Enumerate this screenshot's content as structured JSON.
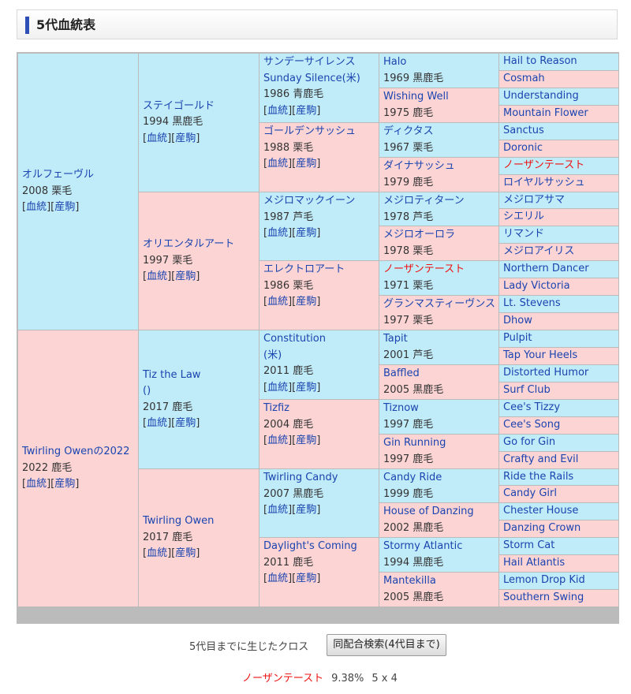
{
  "header": {
    "title": "5代血統表"
  },
  "link_pedigree": "血統",
  "link_offspring": "産駒",
  "pedigree": {
    "sire": {
      "name": "オルフェーヴル",
      "info": "2008 栗毛",
      "sire": {
        "name": "ステイゴールド",
        "info": "1994 黒鹿毛",
        "sire": {
          "name": "サンデーサイレンス",
          "name2": "Sunday Silence(米)",
          "info": "1986 青鹿毛",
          "sire": {
            "name": "Halo",
            "info": "1969 黒鹿毛",
            "sire": "Hail to Reason",
            "dam": "Cosmah"
          },
          "dam": {
            "name": "Wishing Well",
            "info": "1975 鹿毛",
            "sire": "Understanding",
            "dam": "Mountain Flower"
          }
        },
        "dam": {
          "name": "ゴールデンサッシュ",
          "info": "1988 栗毛",
          "sire": {
            "name": "ディクタス",
            "info": "1967 栗毛",
            "sire": "Sanctus",
            "dam": "Doronic"
          },
          "dam": {
            "name": "ダイナサッシュ",
            "info": "1979 鹿毛",
            "sire": "ノーザンテースト",
            "dam": "ロイヤルサッシュ"
          }
        }
      },
      "dam": {
        "name": "オリエンタルアート",
        "info": "1997 栗毛",
        "sire": {
          "name": "メジロマックイーン",
          "info": "1987 芦毛",
          "sire": {
            "name": "メジロティターン",
            "info": "1978 芦毛",
            "sire": "メジロアサマ",
            "dam": "シエリル"
          },
          "dam": {
            "name": "メジロオーロラ",
            "info": "1978 栗毛",
            "sire": "リマンド",
            "dam": "メジロアイリス"
          }
        },
        "dam": {
          "name": "エレクトロアート",
          "info": "1986 栗毛",
          "sire": {
            "name": "ノーザンテースト",
            "info": "1971 栗毛",
            "sire": "Northern Dancer",
            "dam": "Lady Victoria"
          },
          "dam": {
            "name": "グランマスティーヴンス",
            "info": "1977 栗毛",
            "sire": "Lt. Stevens",
            "dam": "Dhow"
          }
        }
      }
    },
    "dam": {
      "name": "Twirling Owenの2022",
      "info": "2022 鹿毛",
      "sire": {
        "name": "Tiz the Law",
        "name2": "()",
        "info": "2017 鹿毛",
        "sire": {
          "name": "Constitution",
          "name2": "(米)",
          "info": "2011 鹿毛",
          "sire": {
            "name": "Tapit",
            "info": "2001 芦毛",
            "sire": "Pulpit",
            "dam": "Tap Your Heels"
          },
          "dam": {
            "name": "Baffled",
            "info": "2005 黒鹿毛",
            "sire": "Distorted Humor",
            "dam": "Surf Club"
          }
        },
        "dam": {
          "name": "Tizfiz",
          "info": "2004 鹿毛",
          "sire": {
            "name": "Tiznow",
            "info": "1997 鹿毛",
            "sire": "Cee's Tizzy",
            "dam": "Cee's Song"
          },
          "dam": {
            "name": "Gin Running",
            "info": "1997 鹿毛",
            "sire": "Go for Gin",
            "dam": "Crafty and Evil"
          }
        }
      },
      "dam": {
        "name": "Twirling Owen",
        "info": "2017 鹿毛",
        "sire": {
          "name": "Twirling Candy",
          "info": "2007 黒鹿毛",
          "sire": {
            "name": "Candy Ride",
            "info": "1999 鹿毛",
            "sire": "Ride the Rails",
            "dam": "Candy Girl"
          },
          "dam": {
            "name": "House of Danzing",
            "info": "2002 黒鹿毛",
            "sire": "Chester House",
            "dam": "Danzing Crown"
          }
        },
        "dam": {
          "name": "Daylight's Coming",
          "info": "2011 鹿毛",
          "sire": {
            "name": "Stormy Atlantic",
            "info": "1994 黒鹿毛",
            "sire": "Storm Cat",
            "dam": "Hail Atlantis"
          },
          "dam": {
            "name": "Mantekilla",
            "info": "2005 黒鹿毛",
            "sire": "Lemon Drop Kid",
            "dam": "Southern Swing"
          }
        }
      }
    }
  },
  "colors": {
    "male_bg": "#c0ebf8",
    "female_bg": "#fcd4d4",
    "link": "#1a44b0",
    "inbreed": "#ee1111"
  },
  "inbreed_horse": "ノーザンテースト",
  "cross": {
    "label": "5代目までに生じたクロス",
    "button": "同配合検索(4代目まで)",
    "results": [
      {
        "name": "ノーザンテースト",
        "pct": "9.38%",
        "gen": "5 x 4"
      }
    ]
  }
}
